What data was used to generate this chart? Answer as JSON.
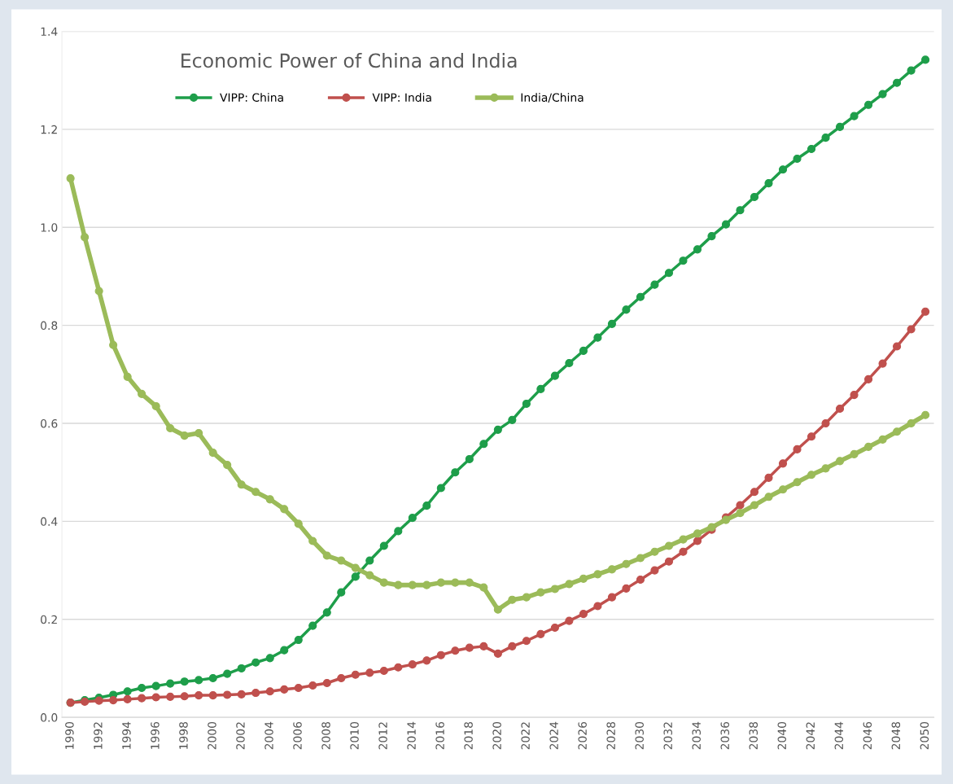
{
  "chart_data": {
    "type": "line",
    "title": "Economic Power of China and India",
    "categories": [
      "1990",
      null,
      "1992",
      null,
      "1994",
      null,
      "1996",
      null,
      "1998",
      null,
      "2000",
      null,
      "2002",
      null,
      "2004",
      null,
      "2006",
      null,
      "2008",
      null,
      "2010",
      null,
      "2012",
      null,
      "2014",
      null,
      "2016",
      null,
      "2018",
      null,
      "2020",
      null,
      "2022",
      null,
      "2024",
      null,
      "2026",
      null,
      "2028",
      null,
      "2030",
      null,
      "2032",
      null,
      "2034",
      null,
      "2036",
      null,
      "2038",
      null,
      "2040",
      null,
      "2042",
      null,
      "2044",
      null,
      "2046",
      null,
      "2048",
      null,
      "2050"
    ],
    "series": [
      {
        "name": "VIPP: China",
        "color": "#1e9e4a",
        "values": [
          0.03,
          0.035,
          0.04,
          0.046,
          0.053,
          0.06,
          0.064,
          0.069,
          0.073,
          0.076,
          0.08,
          0.089,
          0.1,
          0.112,
          0.121,
          0.137,
          0.158,
          0.187,
          0.214,
          0.255,
          0.287,
          0.32,
          0.35,
          0.38,
          0.407,
          0.432,
          0.468,
          0.5,
          0.527,
          0.558,
          0.587,
          0.607,
          0.64,
          0.67,
          0.697,
          0.723,
          0.748,
          0.775,
          0.803,
          0.832,
          0.858,
          0.883,
          0.907,
          0.932,
          0.955,
          0.982,
          1.006,
          1.035,
          1.062,
          1.09,
          1.118,
          1.14,
          1.16,
          1.183,
          1.205,
          1.227,
          1.25,
          1.272,
          1.295,
          1.32,
          1.342
        ]
      },
      {
        "name": "VIPP: India",
        "color": "#c0504d",
        "values": [
          0.03,
          0.032,
          0.034,
          0.035,
          0.037,
          0.039,
          0.041,
          0.042,
          0.043,
          0.045,
          0.045,
          0.046,
          0.047,
          0.05,
          0.053,
          0.057,
          0.06,
          0.065,
          0.07,
          0.08,
          0.087,
          0.091,
          0.095,
          0.102,
          0.108,
          0.116,
          0.127,
          0.136,
          0.142,
          0.145,
          0.13,
          0.145,
          0.156,
          0.17,
          0.183,
          0.197,
          0.211,
          0.227,
          0.245,
          0.263,
          0.281,
          0.3,
          0.318,
          0.338,
          0.36,
          0.383,
          0.408,
          0.433,
          0.46,
          0.489,
          0.518,
          0.547,
          0.573,
          0.6,
          0.63,
          0.658,
          0.69,
          0.722,
          0.757,
          0.792,
          0.828
        ]
      },
      {
        "name": "India/China",
        "color": "#9bbb59",
        "values": [
          1.1,
          0.98,
          0.87,
          0.76,
          0.695,
          0.66,
          0.635,
          0.59,
          0.575,
          0.58,
          0.54,
          0.515,
          0.475,
          0.46,
          0.445,
          0.425,
          0.395,
          0.36,
          0.33,
          0.32,
          0.305,
          0.29,
          0.275,
          0.27,
          0.27,
          0.27,
          0.275,
          0.275,
          0.275,
          0.265,
          0.22,
          0.24,
          0.245,
          0.255,
          0.262,
          0.272,
          0.283,
          0.292,
          0.302,
          0.313,
          0.325,
          0.338,
          0.35,
          0.363,
          0.375,
          0.388,
          0.403,
          0.417,
          0.433,
          0.45,
          0.465,
          0.48,
          0.495,
          0.508,
          0.523,
          0.537,
          0.552,
          0.567,
          0.583,
          0.6,
          0.617
        ]
      }
    ],
    "ylim": [
      0,
      1.4
    ],
    "yticks": [
      {
        "value": 0,
        "label": "0.0"
      },
      0.2,
      0.4,
      0.6,
      0.8,
      {
        "value": 1,
        "label": "1.0"
      },
      1.2,
      1.4
    ],
    "grid": "y",
    "legend": "top left",
    "marker": "circle",
    "line_style": "solid"
  }
}
